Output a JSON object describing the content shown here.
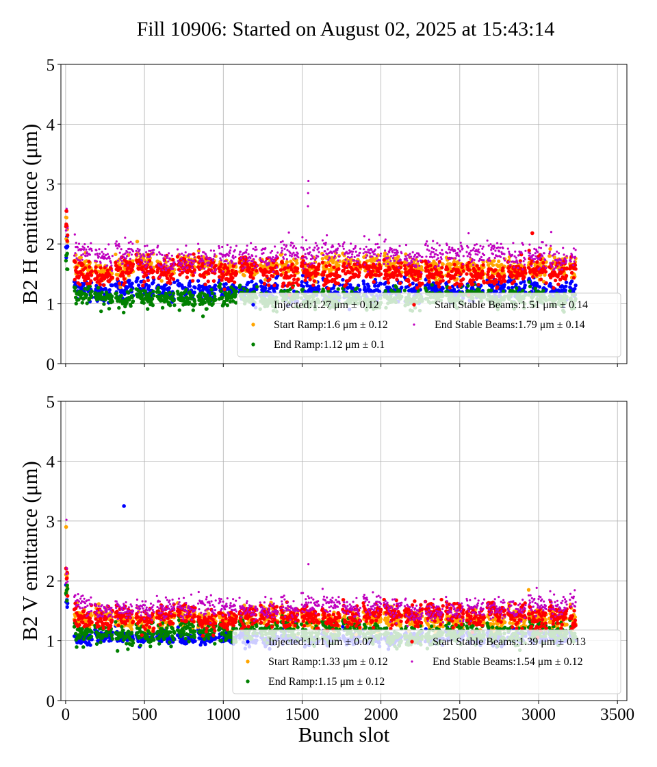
{
  "chart_data": [
    {
      "type": "scatter",
      "title": "Fill 10906: Started on August 02, 2025 at 15:43:14",
      "xlabel": "",
      "ylabel": "B2 H emittance (μm)",
      "xlim": [
        -30,
        3560
      ],
      "ylim": [
        0,
        5
      ],
      "xticks": [
        0,
        500,
        1000,
        1500,
        2000,
        2500,
        3000,
        3500
      ],
      "xtick_labels": [],
      "yticks": [
        0,
        1,
        2,
        3,
        4,
        5
      ],
      "ytick_labels": [
        "0",
        "1",
        "2",
        "3",
        "4",
        "5"
      ],
      "grid": true,
      "legend_placement": "lower-right",
      "filled_bunch_range": [
        0,
        3230
      ],
      "series": [
        {
          "name": "Injected",
          "label": "Injected:1.27 μm ± 0.12",
          "mean": 1.27,
          "std": 0.12,
          "color": "#0000ff"
        },
        {
          "name": "Start Ramp",
          "label": "Start Ramp:1.6 μm ± 0.12",
          "mean": 1.6,
          "std": 0.12,
          "color": "#ffa500"
        },
        {
          "name": "End Ramp",
          "label": "End Ramp:1.12 μm ± 0.1",
          "mean": 1.12,
          "std": 0.1,
          "color": "#008000"
        },
        {
          "name": "Start Stable Beams",
          "label": "Start Stable Beams:1.51 μm ± 0.14",
          "mean": 1.51,
          "std": 0.14,
          "color": "#ff0000"
        },
        {
          "name": "End Stable Beams",
          "label": "End Stable Beams:1.79 μm ± 0.14",
          "mean": 1.79,
          "std": 0.14,
          "color": "#bf00bf"
        }
      ],
      "outliers": [
        {
          "series": 4,
          "x": 1540,
          "y": 3.05
        },
        {
          "series": 4,
          "x": 1538,
          "y": 2.85
        },
        {
          "series": 4,
          "x": 1537,
          "y": 2.63
        },
        {
          "series": 3,
          "x": 2960,
          "y": 2.18
        },
        {
          "series": 4,
          "x": 3080,
          "y": 2.2
        },
        {
          "series": 3,
          "x": 5,
          "y": 2.55
        }
      ]
    },
    {
      "type": "scatter",
      "title": "",
      "xlabel": "Bunch slot",
      "ylabel": "B2 V emittance (μm)",
      "xlim": [
        -30,
        3560
      ],
      "ylim": [
        0,
        5
      ],
      "xticks": [
        0,
        500,
        1000,
        1500,
        2000,
        2500,
        3000,
        3500
      ],
      "xtick_labels": [
        "0",
        "500",
        "1000",
        "1500",
        "2000",
        "2500",
        "3000",
        "3500"
      ],
      "yticks": [
        0,
        1,
        2,
        3,
        4,
        5
      ],
      "ytick_labels": [
        "0",
        "1",
        "2",
        "3",
        "4",
        "5"
      ],
      "grid": true,
      "legend_placement": "lower-right",
      "filled_bunch_range": [
        0,
        3230
      ],
      "series": [
        {
          "name": "Injected",
          "label": "Injected:1.11 μm ± 0.07",
          "mean": 1.11,
          "std": 0.07,
          "color": "#0000ff"
        },
        {
          "name": "Start Ramp",
          "label": "Start Ramp:1.33 μm ± 0.12",
          "mean": 1.33,
          "std": 0.12,
          "color": "#ffa500"
        },
        {
          "name": "End Ramp",
          "label": "End Ramp:1.15 μm ± 0.12",
          "mean": 1.15,
          "std": 0.12,
          "color": "#008000"
        },
        {
          "name": "Start Stable Beams",
          "label": "Start Stable Beams:1.39 μm ± 0.13",
          "mean": 1.39,
          "std": 0.13,
          "color": "#ff0000"
        },
        {
          "name": "End Stable Beams",
          "label": "End Stable Beams:1.54 μm ± 0.12",
          "mean": 1.54,
          "std": 0.12,
          "color": "#bf00bf"
        }
      ],
      "outliers": [
        {
          "series": 0,
          "x": 370,
          "y": 3.25
        },
        {
          "series": 4,
          "x": 1540,
          "y": 2.28
        },
        {
          "series": 4,
          "x": 5,
          "y": 3.02
        },
        {
          "series": 1,
          "x": 3,
          "y": 2.9
        }
      ]
    }
  ]
}
